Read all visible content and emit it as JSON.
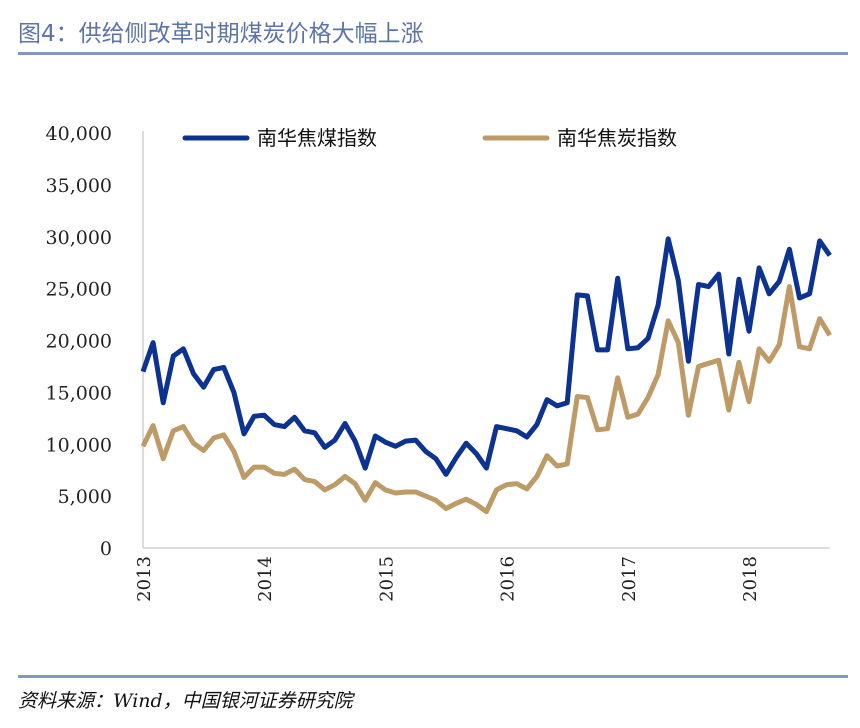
{
  "title": "图4：供给侧改革时期煤炭价格大幅上涨",
  "source": "资料来源：Wind，中国银河证券研究院",
  "colors": {
    "coking_coal": "#0c3391",
    "coke": "#bd9a66",
    "rule": "#8497c4"
  },
  "chart_data": {
    "type": "line",
    "xlabel": "",
    "ylabel": "",
    "ylim": [
      0,
      40000
    ],
    "yticks": [
      "0",
      "5,000",
      "10,000",
      "15,000",
      "20,000",
      "25,000",
      "30,000",
      "35,000",
      "40,000"
    ],
    "xticks": [
      "2013",
      "2014",
      "2015",
      "2016",
      "2017",
      "2018"
    ],
    "x_start": "2013-01",
    "frequency": "monthly",
    "grid": false,
    "legend": "top",
    "series": [
      {
        "name": "南华焦煤指数",
        "values": [
          17000,
          19800,
          14000,
          18500,
          19200,
          16800,
          15500,
          17200,
          17400,
          15000,
          11000,
          12700,
          12800,
          11900,
          11700,
          12600,
          11300,
          11100,
          9700,
          10400,
          12000,
          10300,
          7700,
          10800,
          10200,
          9800,
          10300,
          10400,
          9300,
          8600,
          7100,
          8700,
          10100,
          9100,
          7700,
          11700,
          11500,
          11300,
          10700,
          11900,
          14300,
          13700,
          14000,
          24400,
          24300,
          19100,
          19100,
          26000,
          19200,
          19300,
          20200,
          23400,
          29800,
          25800,
          18000,
          25400,
          25200,
          26400,
          18700,
          25900,
          20900,
          27000,
          24500,
          25700,
          28800,
          24100,
          24500,
          29600,
          28200
        ]
      },
      {
        "name": "南华焦炭指数",
        "values": [
          9800,
          11800,
          8600,
          11300,
          11700,
          10100,
          9400,
          10600,
          10900,
          9300,
          6800,
          7800,
          7800,
          7200,
          7100,
          7600,
          6600,
          6400,
          5600,
          6100,
          6900,
          6200,
          4600,
          6300,
          5600,
          5300,
          5400,
          5400,
          5000,
          4600,
          3800,
          4300,
          4700,
          4200,
          3500,
          5600,
          6100,
          6200,
          5700,
          6900,
          8900,
          7900,
          8100,
          14600,
          14500,
          11400,
          11500,
          16400,
          12600,
          12900,
          14500,
          16700,
          21900,
          19800,
          12800,
          17500,
          17800,
          18100,
          13300,
          17900,
          14100,
          19200,
          18000,
          19600,
          25200,
          19400,
          19200,
          22100,
          20500
        ]
      }
    ]
  }
}
